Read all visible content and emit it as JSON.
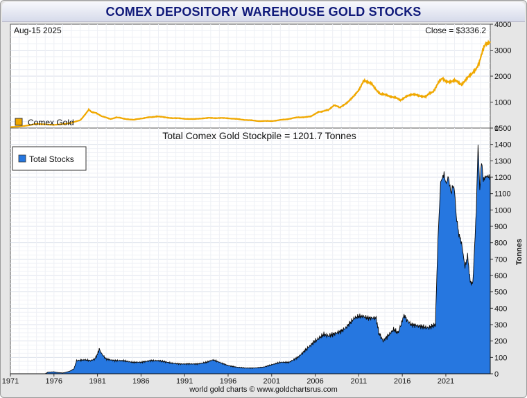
{
  "title": "COMEX DEPOSITORY WAREHOUSE GOLD STOCKS",
  "footer": "world gold charts © www.goldchartsrus.com",
  "colors": {
    "gold_line": "#f0a800",
    "stocks_fill": "#2677e0",
    "title_text": "#101a7a"
  },
  "chart_data": [
    {
      "type": "line",
      "date_label": "Aug-15  2025",
      "close_label": "Close = $3336.2",
      "legend": "Comex Gold",
      "legend_position": "bottom-left",
      "ylim": [
        0,
        4000
      ],
      "yticks": [
        0,
        1000,
        2000,
        3000,
        4000
      ],
      "xlim": [
        1971,
        2026.1
      ],
      "grid": true,
      "series": [
        {
          "name": "Comex Gold",
          "x": [
            1971,
            1972,
            1973,
            1974,
            1975,
            1976,
            1977,
            1978,
            1979,
            1979.6,
            1980.0,
            1980.3,
            1980.8,
            1981.5,
            1982.5,
            1983.2,
            1984,
            1985.2,
            1986,
            1987.8,
            1989,
            1990,
            1991,
            1992,
            1993.2,
            1994,
            1996,
            1997.5,
            1999.5,
            2001,
            2002.5,
            2004,
            2005.5,
            2006.4,
            2007.5,
            2008.2,
            2008.8,
            2009.5,
            2010.5,
            2011.6,
            2012.5,
            2013.5,
            2014.5,
            2015.8,
            2016.5,
            2017.5,
            2018.7,
            2019.5,
            2020.6,
            2021.0,
            2022.0,
            2022.8,
            2023.5,
            2024.0,
            2024.8,
            2025.3,
            2025.6,
            2026.1
          ],
          "values": [
            40,
            55,
            100,
            160,
            140,
            125,
            150,
            200,
            300,
            520,
            700,
            620,
            600,
            450,
            350,
            420,
            360,
            320,
            370,
            450,
            400,
            380,
            360,
            340,
            380,
            390,
            380,
            330,
            270,
            270,
            330,
            410,
            440,
            620,
            690,
            900,
            780,
            950,
            1230,
            1800,
            1700,
            1300,
            1250,
            1080,
            1250,
            1280,
            1220,
            1400,
            1950,
            1800,
            1820,
            1700,
            1950,
            2050,
            2500,
            3000,
            3300,
            3340
          ]
        }
      ]
    },
    {
      "type": "area",
      "title": "Total Comex Gold Stockpile = 1201.7 Tonnes",
      "legend": "Total Stocks",
      "legend_position": "top-left",
      "ylabel": "Tonnes",
      "ylim": [
        0,
        1500
      ],
      "yticks": [
        0,
        100,
        200,
        300,
        400,
        500,
        600,
        700,
        800,
        900,
        1000,
        1100,
        1200,
        1300,
        1400,
        1500
      ],
      "xlim": [
        1971,
        2026.1
      ],
      "xticks": [
        1971,
        1976,
        1981,
        1986,
        1991,
        1996,
        2001,
        2006,
        2011,
        2016,
        2021
      ],
      "grid": true,
      "series": [
        {
          "name": "Total Stocks",
          "x": [
            1971,
            1975.0,
            1975.3,
            1976.0,
            1976.4,
            1977.0,
            1977.4,
            1977.8,
            1978.3,
            1978.6,
            1979.5,
            1980.2,
            1980.7,
            1981.0,
            1981.2,
            1981.5,
            1982.0,
            1983.0,
            1984.0,
            1985.0,
            1986.0,
            1987.0,
            1988.0,
            1988.6,
            1989.5,
            1990.5,
            1991.5,
            1992.5,
            1993.5,
            1994.3,
            1995.0,
            1996.0,
            1997.0,
            1998.0,
            1999.0,
            2000.0,
            2001.0,
            2002.0,
            2003.0,
            2004.0,
            2005.0,
            2006.0,
            2007.0,
            2007.5,
            2008.0,
            2009.0,
            2009.5,
            2010.0,
            2010.5,
            2011.0,
            2011.5,
            2012.0,
            2012.5,
            2013.0,
            2013.3,
            2013.8,
            2014.5,
            2015.0,
            2015.5,
            2015.8,
            2016.2,
            2016.5,
            2017.0,
            2018.0,
            2019.0,
            2019.8,
            2020.1,
            2020.4,
            2020.8,
            2021.0,
            2021.3,
            2021.6,
            2021.8,
            2022.0,
            2022.2,
            2022.5,
            2022.8,
            2023.2,
            2023.5,
            2023.8,
            2024.1,
            2024.5,
            2024.7,
            2024.9,
            2025.1,
            2025.3,
            2025.5,
            2025.7,
            2026.1
          ],
          "values": [
            0,
            0,
            10,
            12,
            8,
            5,
            10,
            15,
            30,
            80,
            85,
            80,
            90,
            120,
            150,
            120,
            90,
            80,
            80,
            70,
            70,
            80,
            80,
            75,
            65,
            60,
            60,
            60,
            70,
            85,
            70,
            50,
            40,
            35,
            35,
            40,
            55,
            70,
            70,
            100,
            150,
            200,
            240,
            230,
            240,
            260,
            280,
            310,
            340,
            350,
            350,
            340,
            340,
            340,
            250,
            200,
            240,
            270,
            250,
            290,
            360,
            330,
            300,
            290,
            280,
            300,
            820,
            1170,
            1220,
            1160,
            1200,
            1100,
            1150,
            1120,
            960,
            850,
            800,
            650,
            720,
            560,
            550,
            1000,
            1400,
            1120,
            1300,
            1180,
            1200,
            1205,
            1201.7
          ]
        }
      ]
    }
  ]
}
